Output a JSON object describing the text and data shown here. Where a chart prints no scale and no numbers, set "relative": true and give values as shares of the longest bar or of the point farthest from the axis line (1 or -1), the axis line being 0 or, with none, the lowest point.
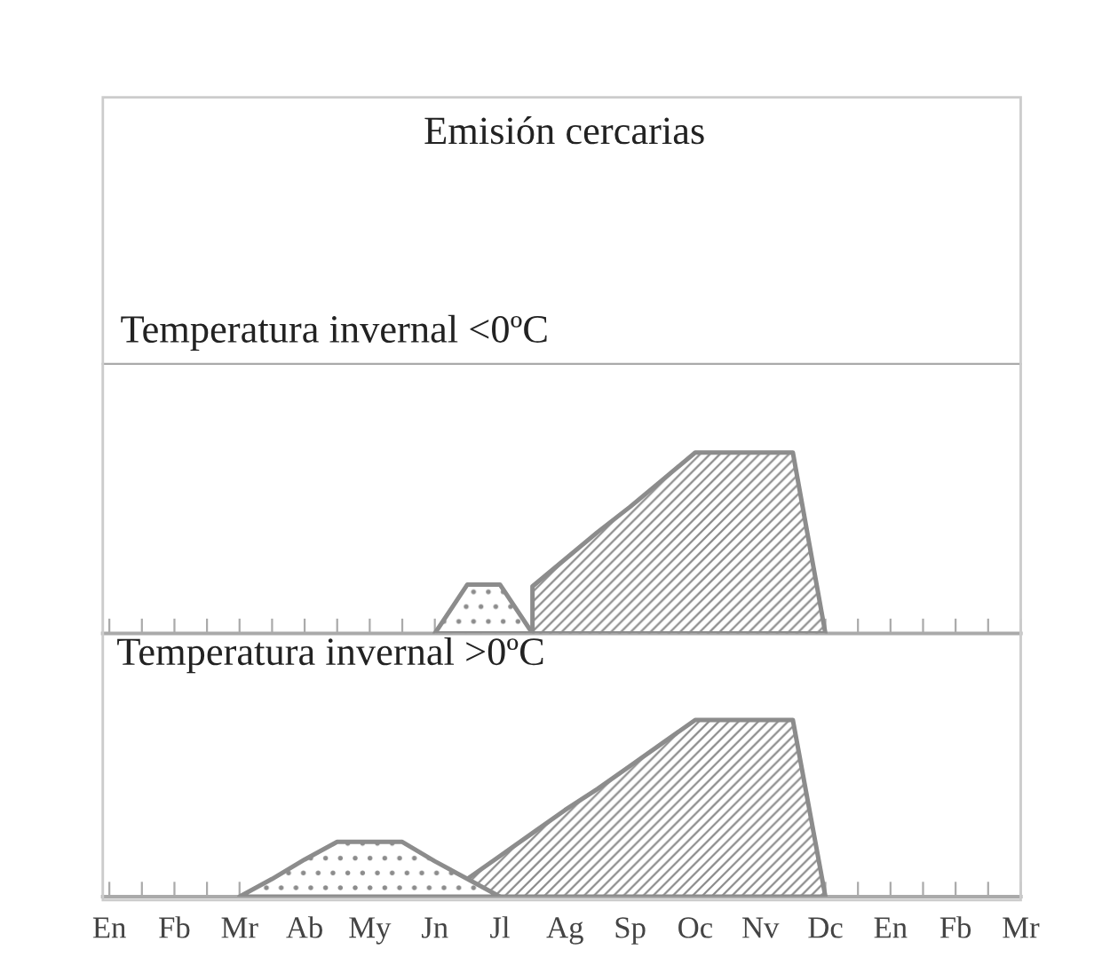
{
  "chart_data": [
    {
      "type": "area",
      "title": "Emisión cercarias",
      "subtitle": "Temperatura invernal <0ºC",
      "relative": true,
      "tick_labels": false,
      "categories": [
        null,
        null,
        null,
        null,
        null,
        null,
        null,
        null,
        null,
        null,
        null,
        null,
        null,
        null,
        null,
        null,
        null,
        null,
        null,
        null,
        null,
        null,
        null,
        null,
        null,
        null,
        null,
        null,
        null
      ],
      "series": [
        {
          "color": "#8c8c8c",
          "values": [
            null,
            null,
            null,
            null,
            null,
            null,
            null,
            null,
            null,
            null,
            0,
            0.27,
            0.27,
            0,
            null,
            null,
            null,
            null,
            null,
            null,
            null,
            null,
            null,
            null,
            null,
            null,
            null,
            null,
            null
          ]
        },
        {
          "color": "#8c8c8c",
          "values": [
            null,
            null,
            null,
            null,
            null,
            null,
            null,
            null,
            null,
            null,
            null,
            null,
            null,
            0.26,
            0.41,
            0.56,
            0.7,
            0.85,
            1,
            1,
            1,
            1,
            0,
            null,
            null,
            null,
            null,
            null,
            null
          ]
        }
      ]
    },
    {
      "type": "area",
      "title": "Temperatura invernal >0ºC",
      "relative": true,
      "tick_labels": "x",
      "categories": [
        "En",
        null,
        "Fb",
        null,
        "Mr",
        null,
        "Ab",
        null,
        "My",
        null,
        "Jn",
        null,
        "Jl",
        null,
        "Ag",
        null,
        "Sp",
        null,
        "Oc",
        null,
        "Nv",
        null,
        "Dc",
        null,
        "En",
        null,
        "Fb",
        null,
        "Mr"
      ],
      "series": [
        {
          "color": "#8c8c8c",
          "values": [
            null,
            null,
            null,
            null,
            0,
            0.1,
            0.21,
            0.31,
            0.31,
            0.31,
            0.2,
            0.1,
            0,
            null,
            null,
            null,
            null,
            null,
            null,
            null,
            null,
            null,
            null,
            null,
            null,
            null,
            null,
            null,
            null
          ]
        },
        {
          "color": "#8c8c8c",
          "values": [
            null,
            null,
            null,
            null,
            null,
            null,
            null,
            null,
            null,
            null,
            null,
            0.1,
            0.23,
            0.36,
            0.49,
            0.61,
            0.74,
            0.87,
            1,
            1,
            1,
            1,
            0,
            null,
            null,
            null,
            null,
            null,
            null
          ]
        }
      ]
    }
  ]
}
